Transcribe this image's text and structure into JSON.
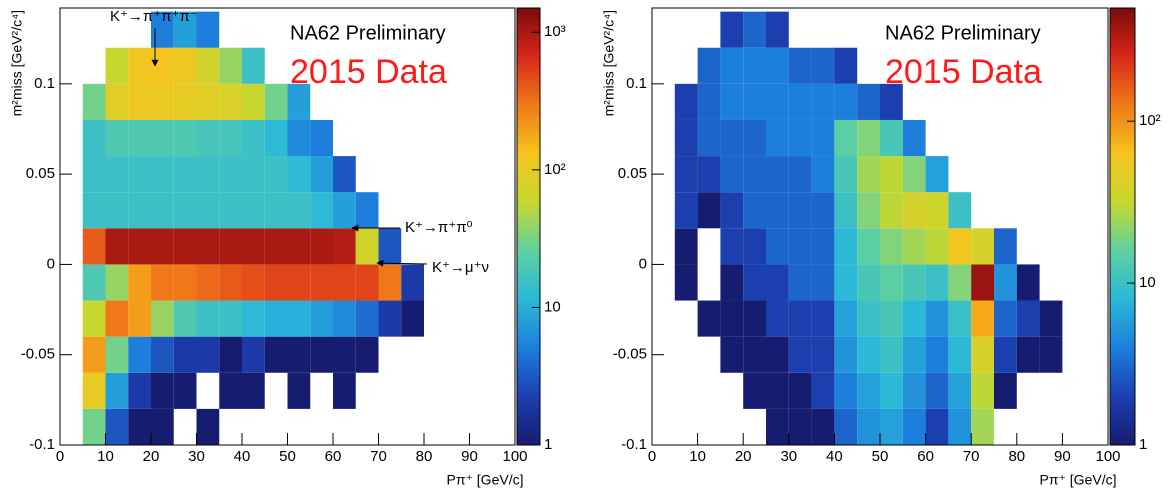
{
  "chart_data": [
    {
      "type": "heatmap",
      "subtitle": "NA62 Preliminary",
      "title": "2015 Data",
      "xlabel": "Pπ⁺ [GeV/c]",
      "ylabel": "m²miss [GeV²/c⁴]",
      "xlim": [
        0,
        100
      ],
      "ylim": [
        -0.1,
        0.142
      ],
      "zlim": [
        1,
        1500
      ],
      "log_z": true,
      "xticks": [
        0,
        10,
        20,
        30,
        40,
        50,
        60,
        70,
        80,
        90,
        100
      ],
      "yticks": [
        -0.1,
        -0.05,
        0,
        0.05,
        0.1
      ],
      "zticks": [
        1,
        10,
        {
          "value": 100,
          "label": "10²"
        },
        {
          "value": 1000,
          "label": "10³"
        }
      ],
      "colormap": [
        "#161d70",
        "#1c3fb0",
        "#1d7fdc",
        "#2bb8d8",
        "#5fd0a0",
        "#c6d830",
        "#f6c41e",
        "#f07a18",
        "#d8281a",
        "#7a0c0c"
      ],
      "annotations": [
        "K⁺→π⁺π⁺π⁻",
        "K⁺→π⁺π⁰",
        "K⁺→μ⁺ν"
      ],
      "x_bins": [
        0,
        5,
        10,
        15,
        20,
        25,
        30,
        35,
        40,
        45,
        50,
        55,
        60,
        65,
        70,
        75,
        80,
        85,
        90,
        95,
        100
      ],
      "y_bins": [
        -0.1,
        -0.08,
        -0.06,
        -0.04,
        -0.02,
        0,
        0.02,
        0.04,
        0.06,
        0.08,
        0.1,
        0.12,
        0.14
      ],
      "z": [
        [
          null,
          30,
          3,
          1,
          1,
          null,
          1,
          null,
          null,
          null,
          null,
          null,
          null,
          null,
          null,
          null,
          null,
          null,
          null,
          null
        ],
        [
          null,
          100,
          8,
          2,
          1,
          1,
          null,
          1,
          1,
          null,
          1,
          null,
          1,
          null,
          null,
          null,
          null,
          null,
          null,
          null
        ],
        [
          null,
          200,
          30,
          5,
          3,
          2,
          2,
          1,
          2,
          1,
          1,
          1,
          1,
          1,
          null,
          null,
          null,
          null,
          null,
          null
        ],
        [
          null,
          60,
          300,
          200,
          40,
          20,
          15,
          15,
          12,
          10,
          10,
          8,
          6,
          4,
          2,
          1,
          null,
          null,
          null,
          null
        ],
        [
          null,
          20,
          40,
          200,
          300,
          300,
          350,
          400,
          450,
          500,
          500,
          500,
          500,
          500,
          300,
          2,
          null,
          null,
          null,
          null
        ],
        [
          null,
          400,
          1000,
          1000,
          1000,
          1000,
          1000,
          1000,
          1000,
          1000,
          1000,
          1000,
          900,
          70,
          3,
          null,
          null,
          null,
          null,
          null
        ],
        [
          null,
          15,
          15,
          15,
          15,
          15,
          15,
          15,
          15,
          15,
          15,
          12,
          8,
          5,
          null,
          null,
          null,
          null,
          null,
          null
        ],
        [
          null,
          15,
          15,
          15,
          15,
          15,
          15,
          15,
          15,
          15,
          12,
          8,
          3,
          null,
          null,
          null,
          null,
          null,
          null,
          null
        ],
        [
          null,
          15,
          20,
          20,
          20,
          20,
          18,
          18,
          15,
          12,
          6,
          5,
          null,
          null,
          null,
          null,
          null,
          null,
          null,
          null
        ],
        [
          null,
          30,
          90,
          110,
          110,
          100,
          90,
          80,
          60,
          30,
          8,
          null,
          null,
          null,
          null,
          null,
          null,
          null,
          null,
          null
        ],
        [
          null,
          null,
          60,
          120,
          130,
          110,
          70,
          40,
          15,
          null,
          null,
          null,
          null,
          null,
          null,
          null,
          null,
          null,
          null,
          null
        ],
        [
          null,
          null,
          null,
          null,
          5,
          8,
          5,
          null,
          null,
          null,
          null,
          null,
          null,
          null,
          null,
          null,
          null,
          null,
          null,
          null
        ]
      ]
    },
    {
      "type": "heatmap",
      "subtitle": "NA62 Preliminary",
      "title": "2015 Data",
      "xlabel": "Pπ⁺ [GeV/c]",
      "ylabel": "m²miss [GeV²/c⁴]",
      "xlim": [
        0,
        100
      ],
      "ylim": [
        -0.1,
        0.142
      ],
      "zlim": [
        1,
        500
      ],
      "log_z": true,
      "xticks": [
        0,
        10,
        20,
        30,
        40,
        50,
        60,
        70,
        80,
        90,
        100
      ],
      "yticks": [
        -0.1,
        -0.05,
        0,
        0.05,
        0.1
      ],
      "zticks": [
        1,
        10,
        {
          "value": 100,
          "label": "10²"
        }
      ],
      "colormap": [
        "#161d70",
        "#1c3fb0",
        "#1d7fdc",
        "#2bb8d8",
        "#5fd0a0",
        "#c6d830",
        "#f6c41e",
        "#f07a18",
        "#d8281a",
        "#7a0c0c"
      ],
      "x_bins": [
        0,
        5,
        10,
        15,
        20,
        25,
        30,
        35,
        40,
        45,
        50,
        55,
        60,
        65,
        70,
        75,
        80,
        85,
        90,
        95,
        100
      ],
      "y_bins": [
        -0.1,
        -0.08,
        -0.06,
        -0.04,
        -0.02,
        0,
        0.02,
        0.04,
        0.06,
        0.08,
        0.1,
        0.12,
        0.14
      ],
      "z": [
        [
          null,
          null,
          null,
          null,
          null,
          1,
          1,
          1,
          3,
          5,
          6,
          4,
          2,
          5,
          25,
          null,
          null,
          null,
          null,
          null
        ],
        [
          null,
          null,
          null,
          null,
          1,
          1,
          1,
          2,
          4,
          6,
          8,
          5,
          3,
          6,
          30,
          1,
          null,
          null,
          null,
          null
        ],
        [
          null,
          null,
          null,
          1,
          1,
          1,
          2,
          2,
          5,
          8,
          10,
          6,
          4,
          8,
          40,
          2,
          1,
          1,
          null,
          null
        ],
        [
          null,
          null,
          1,
          1,
          1,
          2,
          2,
          2,
          6,
          10,
          12,
          8,
          5,
          10,
          80,
          3,
          2,
          1,
          null,
          null
        ],
        [
          null,
          1,
          null,
          1,
          2,
          2,
          3,
          3,
          8,
          12,
          15,
          12,
          10,
          20,
          400,
          5,
          1,
          null,
          null,
          null
        ],
        [
          null,
          1,
          null,
          2,
          2,
          3,
          3,
          3,
          8,
          15,
          20,
          25,
          30,
          60,
          40,
          3,
          null,
          null,
          null,
          null
        ],
        [
          null,
          2,
          1,
          2,
          3,
          3,
          3,
          3,
          10,
          20,
          30,
          40,
          35,
          10,
          null,
          null,
          null,
          null,
          null,
          null
        ],
        [
          null,
          2,
          2,
          3,
          3,
          3,
          3,
          4,
          12,
          25,
          30,
          20,
          6,
          null,
          null,
          null,
          null,
          null,
          null,
          null
        ],
        [
          null,
          2,
          3,
          3,
          3,
          4,
          4,
          4,
          15,
          20,
          12,
          4,
          null,
          null,
          null,
          null,
          null,
          null,
          null,
          null
        ],
        [
          null,
          2,
          3,
          4,
          4,
          4,
          4,
          4,
          4,
          3,
          2,
          null,
          null,
          null,
          null,
          null,
          null,
          null,
          null,
          null
        ],
        [
          null,
          null,
          3,
          4,
          4,
          4,
          3,
          3,
          2,
          null,
          null,
          null,
          null,
          null,
          null,
          null,
          null,
          null,
          null,
          null
        ],
        [
          null,
          null,
          null,
          2,
          3,
          2,
          null,
          null,
          null,
          null,
          null,
          null,
          null,
          null,
          null,
          null,
          null,
          null,
          null,
          null
        ]
      ]
    }
  ]
}
